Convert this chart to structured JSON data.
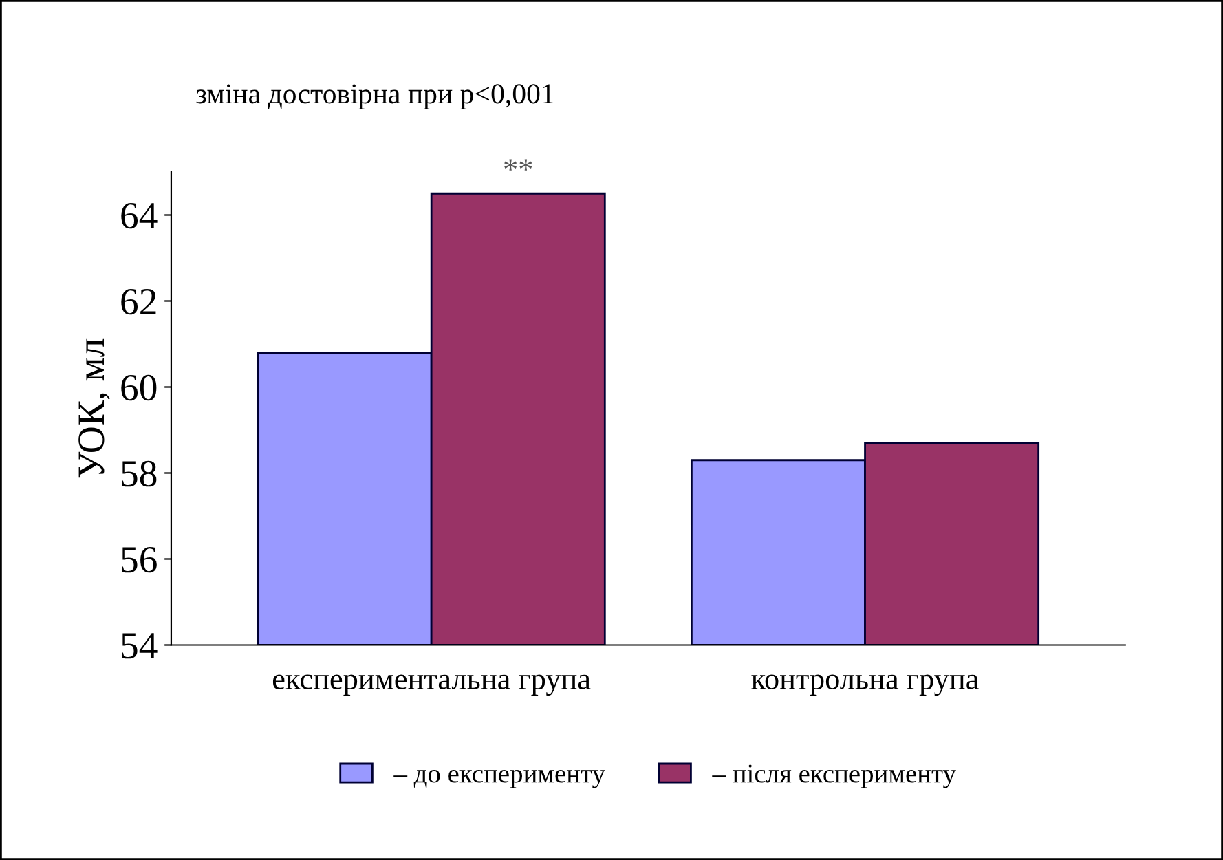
{
  "chart_data": {
    "type": "bar",
    "title": "зміна достовірна при p<0,001",
    "ylabel": "УОК, мл",
    "categories": [
      "експериментальна група",
      "контрольна група"
    ],
    "series": [
      {
        "name": "– до експерименту",
        "color": "#9999ff",
        "values": [
          60.8,
          58.3
        ]
      },
      {
        "name": "– після експерименту",
        "color": "#993366",
        "values": [
          64.5,
          58.7
        ]
      }
    ],
    "ylim": [
      54,
      65
    ],
    "yticks": [
      54,
      56,
      58,
      60,
      62,
      64
    ],
    "grid": false,
    "legend": "bottom",
    "annotations": [
      {
        "text": "**",
        "x": "експериментальна група",
        "y": 64.5
      }
    ]
  }
}
